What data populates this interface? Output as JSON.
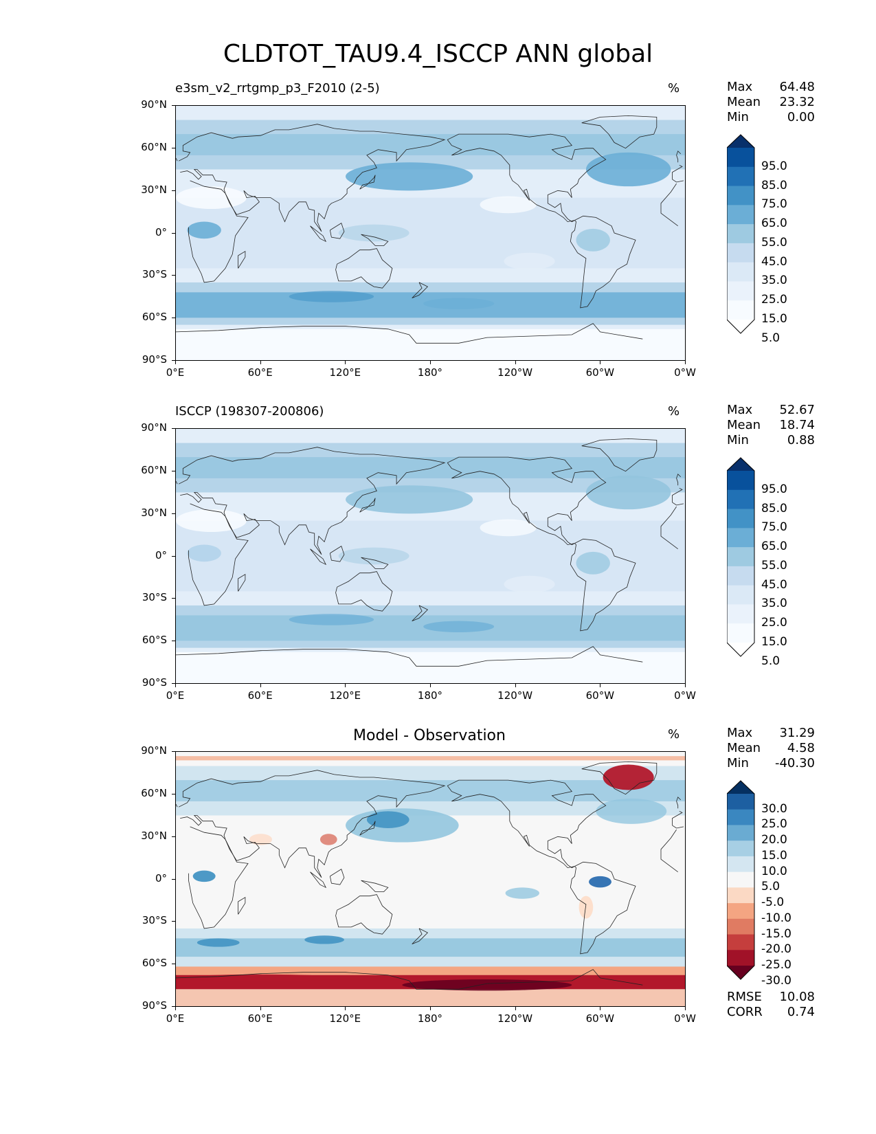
{
  "title": "CLDTOT_TAU9.4_ISCCP ANN global",
  "x_ticks": [
    "0°E",
    "60°E",
    "120°E",
    "180°",
    "120°W",
    "60°W",
    "0°W"
  ],
  "y_ticks": [
    "90°N",
    "60°N",
    "30°N",
    "0°",
    "30°S",
    "60°S",
    "90°S"
  ],
  "panels": [
    {
      "title_left": "e3sm_v2_rrtgmp_p3_F2010 (2-5)",
      "title_center": "",
      "units": "%",
      "stats": {
        "max_label": "Max",
        "max": "64.48",
        "mean_label": "Mean",
        "mean": "23.32",
        "min_label": "Min",
        "min": "0.00"
      },
      "colorbar": {
        "labels": [
          "95.0",
          "85.0",
          "75.0",
          "65.0",
          "55.0",
          "45.0",
          "35.0",
          "25.0",
          "15.0",
          "5.0"
        ],
        "colors": [
          "#08306b",
          "#08519c",
          "#2171b5",
          "#4292c6",
          "#6baed6",
          "#9ecae1",
          "#c6dbef",
          "#dbe9f6",
          "#eaf2fb",
          "#f7fbff",
          "#ffffff"
        ]
      },
      "palette": [
        "#f7fbff",
        "#e3eef9",
        "#cfe1f2",
        "#b5d4e9",
        "#93c4de",
        "#6aaed6",
        "#4a98c9",
        "#2e7ebc"
      ]
    },
    {
      "title_left": "ISCCP (198307-200806)",
      "title_center": "",
      "units": "%",
      "stats": {
        "max_label": "Max",
        "max": "52.67",
        "mean_label": "Mean",
        "mean": "18.74",
        "min_label": "Min",
        "min": "0.88"
      },
      "colorbar": {
        "labels": [
          "95.0",
          "85.0",
          "75.0",
          "65.0",
          "55.0",
          "45.0",
          "35.0",
          "25.0",
          "15.0",
          "5.0"
        ],
        "colors": [
          "#08306b",
          "#08519c",
          "#2171b5",
          "#4292c6",
          "#6baed6",
          "#9ecae1",
          "#c6dbef",
          "#dbe9f6",
          "#eaf2fb",
          "#f7fbff",
          "#ffffff"
        ]
      },
      "palette": [
        "#f7fbff",
        "#e3eef9",
        "#cfe1f2",
        "#b5d4e9",
        "#93c4de",
        "#6aaed6",
        "#4a98c9",
        "#2e7ebc"
      ]
    },
    {
      "title_left": "",
      "title_center": "Model - Observation",
      "units": "%",
      "stats": {
        "max_label": "Max",
        "max": "31.29",
        "mean_label": "Mean",
        "mean": "4.58",
        "min_label": "Min",
        "min": "-40.30"
      },
      "extra_stats": {
        "rmse_label": "RMSE",
        "rmse": "10.08",
        "corr_label": "CORR",
        "corr": "0.74"
      },
      "colorbar": {
        "labels": [
          "30.0",
          "25.0",
          "20.0",
          "15.0",
          "10.0",
          "5.0",
          "-5.0",
          "-10.0",
          "-15.0",
          "-20.0",
          "-25.0",
          "-30.0"
        ],
        "colors": [
          "#053061",
          "#1d5fa1",
          "#3a87c0",
          "#6aabd2",
          "#a7cfe4",
          "#d4e6f1",
          "#f7f7f7",
          "#fbd9c4",
          "#f4a582",
          "#e07b62",
          "#c53e3d",
          "#a11228",
          "#67001f"
        ]
      },
      "palette": [
        "#67001f",
        "#b2182b",
        "#d6604d",
        "#f4a582",
        "#fddbc7",
        "#f7f7f7",
        "#d1e5f0",
        "#92c5de",
        "#4393c3",
        "#2166ac"
      ]
    }
  ]
}
